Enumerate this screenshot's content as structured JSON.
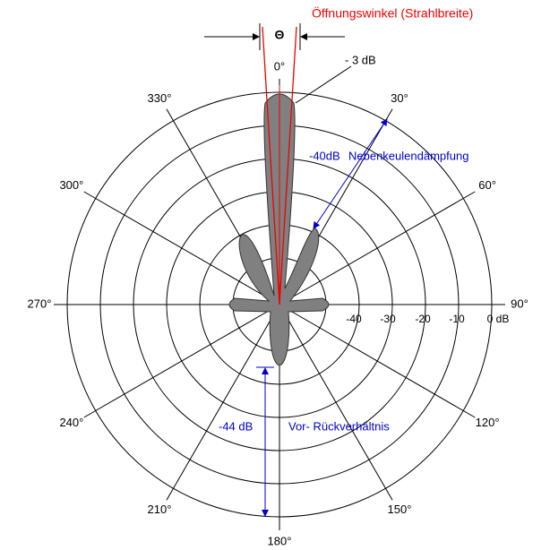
{
  "title": "Öffnungswinkel (Strahlbreite)",
  "theta": "Θ",
  "angle_labels": [
    "0°",
    "30°",
    "60°",
    "90°",
    "120°",
    "150°",
    "180°",
    "210°",
    "240°",
    "270°",
    "300°",
    "330°"
  ],
  "db_labels": [
    "-40",
    "-30",
    "-20",
    "-10",
    "0 dB"
  ],
  "annotations": {
    "beam_db": "- 3 dB",
    "sidelobe_db": "-40dB",
    "sidelobe_text": "Nebenkeulendämpfung",
    "backlobe_db": "-44 dB",
    "backlobe_text": "Vor- Rückverhältnis"
  }
}
